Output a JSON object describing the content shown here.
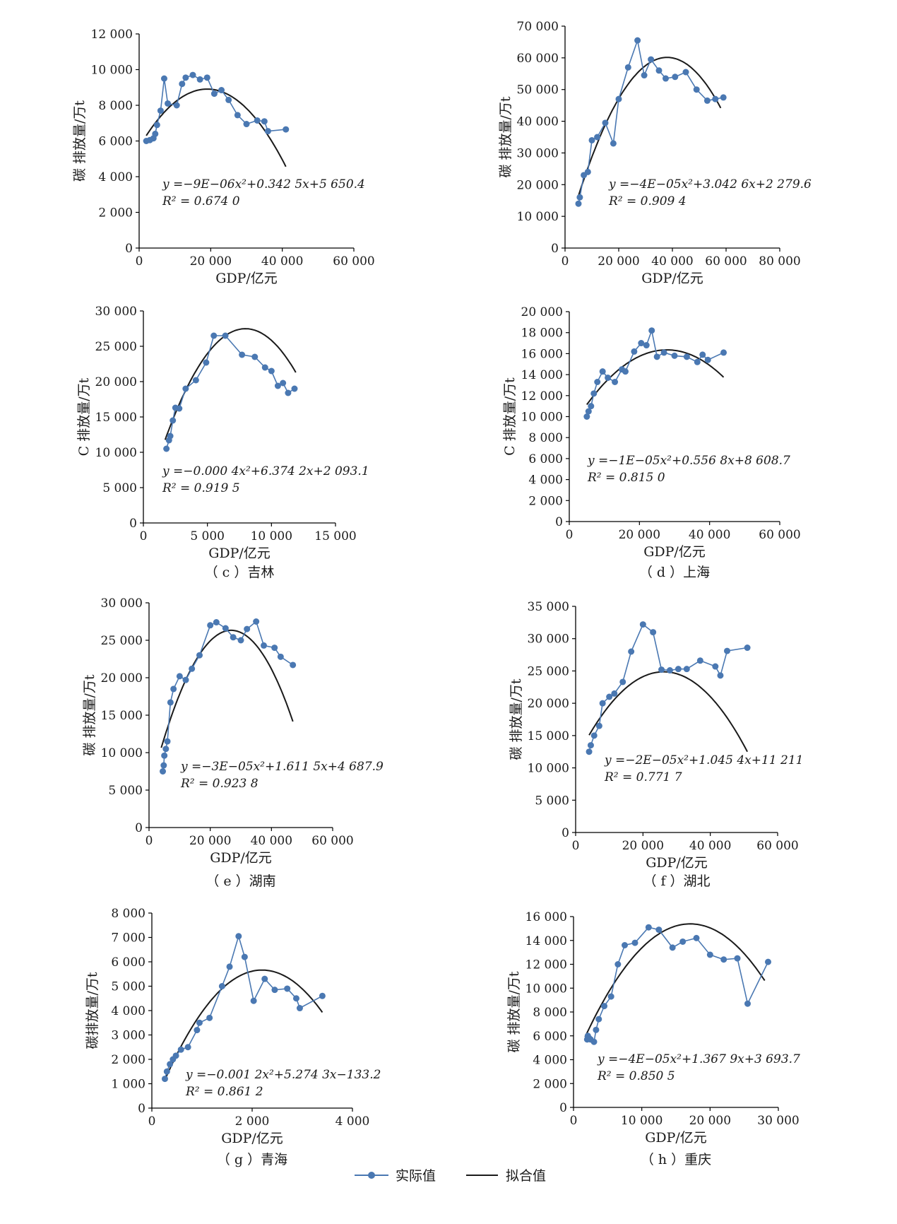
{
  "colors": {
    "actual": "#4a78b2",
    "fit": "#1a1a1a",
    "axis": "#000000"
  },
  "legend": {
    "actual_label": "实际值",
    "fit_label": "拟合值"
  },
  "chart_data": [
    {
      "id": "a",
      "type": "line",
      "caption": "",
      "xlabel": "GDP/亿元",
      "ylabel": "碳 排放量/万t",
      "xlim": [
        0,
        60000
      ],
      "ylim": [
        0,
        12000
      ],
      "xticks": [
        0,
        20000,
        40000,
        60000
      ],
      "xtick_labels": [
        "0",
        "20 000",
        "40 000",
        "60 000"
      ],
      "yticks": [
        0,
        2000,
        4000,
        6000,
        8000,
        10000,
        12000
      ],
      "ytick_labels": [
        "0",
        "2 000",
        "4 000",
        "6 000",
        "8 000",
        "10 000",
        "12 000"
      ],
      "equation": "y =−9E−06x²+0.342 5x+5 650.4",
      "r2": "R² = 0.674 0",
      "fit": {
        "a": -9e-06,
        "b": 0.3425,
        "c": 5650.4,
        "x0": 2000,
        "x1": 41000
      },
      "series": [
        {
          "name": "实际值",
          "x": [
            2000,
            3000,
            4000,
            4500,
            5000,
            6000,
            7000,
            8000,
            10500,
            12000,
            13000,
            15000,
            17000,
            19000,
            21000,
            23000,
            25000,
            27500,
            30000,
            33000,
            35000,
            36000,
            41000
          ],
          "y": [
            6000,
            6050,
            6150,
            6400,
            6900,
            7700,
            9500,
            8100,
            8000,
            9200,
            9550,
            9700,
            9450,
            9550,
            8650,
            8850,
            8300,
            7450,
            6950,
            7150,
            7100,
            6550,
            6650
          ]
        }
      ]
    },
    {
      "id": "b",
      "type": "line",
      "caption": "",
      "xlabel": "GDP/亿元",
      "ylabel": "碳 排放量/万t",
      "xlim": [
        0,
        80000
      ],
      "ylim": [
        0,
        70000
      ],
      "xticks": [
        0,
        20000,
        40000,
        60000,
        80000
      ],
      "xtick_labels": [
        "0",
        "20 000",
        "40 000",
        "60 000",
        "80 000"
      ],
      "yticks": [
        0,
        10000,
        20000,
        30000,
        40000,
        50000,
        60000,
        70000
      ],
      "ytick_labels": [
        "0",
        "10 000",
        "20 000",
        "30 000",
        "40 000",
        "50 000",
        "60 000",
        "70 000"
      ],
      "equation": "y =−4E−05x²+3.042 6x+2 279.6",
      "r2": "R² = 0.909 4",
      "fit": {
        "a": -4e-05,
        "b": 3.0426,
        "c": 2279.6,
        "x0": 5000,
        "x1": 58000
      },
      "series": [
        {
          "name": "实际值",
          "x": [
            5000,
            5500,
            7000,
            8500,
            10000,
            12000,
            15000,
            18000,
            20000,
            23500,
            27000,
            29500,
            32000,
            35000,
            37500,
            41000,
            45000,
            49000,
            53000,
            56000,
            59000
          ],
          "y": [
            14000,
            16000,
            23000,
            24000,
            34000,
            35000,
            39500,
            33000,
            47000,
            57000,
            65500,
            54500,
            59500,
            56000,
            53500,
            54000,
            55500,
            50000,
            46500,
            47000,
            47500
          ]
        }
      ]
    },
    {
      "id": "c",
      "type": "line",
      "caption": "（ c ）吉林",
      "xlabel": "GDP/亿元",
      "ylabel": "C 排放量/万t",
      "xlim": [
        0,
        15000
      ],
      "ylim": [
        0,
        30000
      ],
      "xticks": [
        0,
        5000,
        10000,
        15000
      ],
      "xtick_labels": [
        "0",
        "5 000",
        "10 000",
        "15 000"
      ],
      "yticks": [
        0,
        5000,
        10000,
        15000,
        20000,
        25000,
        30000
      ],
      "ytick_labels": [
        "0",
        "5 000",
        "10 000",
        "15 000",
        "20 000",
        "25 000",
        "30 000"
      ],
      "equation": "y =−0.000 4x²+6.374 2x+2 093.1",
      "r2": "R² = 0.919 5",
      "fit": {
        "a": -0.0004,
        "b": 6.3742,
        "c": 2093.1,
        "x0": 1700,
        "x1": 11900
      },
      "series": [
        {
          "name": "实际值",
          "x": [
            1800,
            2000,
            2100,
            2300,
            2500,
            2800,
            3300,
            4100,
            4900,
            5500,
            6400,
            7700,
            8700,
            9500,
            10000,
            10500,
            10900,
            11300,
            11800
          ],
          "y": [
            10500,
            11700,
            12300,
            14500,
            16300,
            16200,
            19000,
            20200,
            22700,
            26500,
            26500,
            23800,
            23500,
            22000,
            21500,
            19400,
            19800,
            18400,
            19000
          ]
        }
      ]
    },
    {
      "id": "d",
      "type": "line",
      "caption": "（ d ）上海",
      "xlabel": "GDP/亿元",
      "ylabel": "C 排放量/万t",
      "xlim": [
        0,
        60000
      ],
      "ylim": [
        0,
        20000
      ],
      "xticks": [
        0,
        20000,
        40000,
        60000
      ],
      "xtick_labels": [
        "0",
        "20 000",
        "40 000",
        "60 000"
      ],
      "yticks": [
        0,
        2000,
        4000,
        6000,
        8000,
        10000,
        12000,
        14000,
        16000,
        18000,
        20000
      ],
      "ytick_labels": [
        "0",
        "2 000",
        "4 000",
        "6 000",
        "8 000",
        "10 000",
        "12 000",
        "14 000",
        "16 000",
        "18 000",
        "20 000"
      ],
      "equation": "y =−1E−05x²+0.556 8x+8 608.7",
      "r2": "R² = 0.815 0",
      "fit": {
        "a": -1e-05,
        "b": 0.5568,
        "c": 8608.7,
        "x0": 5000,
        "x1": 44000
      },
      "series": [
        {
          "name": "实际值",
          "x": [
            5000,
            5500,
            6200,
            7000,
            8000,
            9500,
            11000,
            13000,
            15000,
            16000,
            18500,
            20500,
            22000,
            23500,
            25000,
            27000,
            30000,
            33500,
            36500,
            38000,
            39500,
            44000
          ],
          "y": [
            10000,
            10500,
            11000,
            12200,
            13300,
            14300,
            13700,
            13300,
            14500,
            14300,
            16200,
            17000,
            16800,
            18200,
            15700,
            16100,
            15800,
            15700,
            15200,
            15900,
            15400,
            16100
          ]
        }
      ]
    },
    {
      "id": "e",
      "type": "line",
      "caption": "（ e ）湖南",
      "xlabel": "GDP/亿元",
      "ylabel": "碳 排放量/万t",
      "xlim": [
        0,
        60000
      ],
      "ylim": [
        0,
        30000
      ],
      "xticks": [
        0,
        20000,
        40000,
        60000
      ],
      "xtick_labels": [
        "0",
        "20 000",
        "40 000",
        "60 000"
      ],
      "yticks": [
        0,
        5000,
        10000,
        15000,
        20000,
        25000,
        30000
      ],
      "ytick_labels": [
        "0",
        "5 000",
        "10 000",
        "15 000",
        "20 000",
        "25 000",
        "30 000"
      ],
      "equation": "y =−3E−05x²+1.611 5x+4 687.9",
      "r2": "R² = 0.923 8",
      "fit": {
        "a": -3e-05,
        "b": 1.6115,
        "c": 4687.9,
        "x0": 4000,
        "x1": 47000
      },
      "series": [
        {
          "name": "实际值",
          "x": [
            4500,
            4800,
            5000,
            5500,
            6000,
            7000,
            8000,
            10000,
            12000,
            14000,
            16500,
            20000,
            22000,
            25000,
            27500,
            30000,
            32000,
            35000,
            37500,
            41000,
            43000,
            47000
          ],
          "y": [
            7500,
            8300,
            9600,
            10500,
            11500,
            16700,
            18500,
            20200,
            19700,
            21200,
            23000,
            27000,
            27400,
            26600,
            25400,
            25000,
            26500,
            27500,
            24300,
            24000,
            22800,
            21700
          ]
        }
      ]
    },
    {
      "id": "f",
      "type": "line",
      "caption": "（ f ）湖北",
      "xlabel": "GDP/亿元",
      "ylabel": "碳 排放量/万t",
      "xlim": [
        0,
        60000
      ],
      "ylim": [
        0,
        35000
      ],
      "xticks": [
        0,
        20000,
        40000,
        60000
      ],
      "xtick_labels": [
        "0",
        "20 000",
        "40 000",
        "60 000"
      ],
      "yticks": [
        0,
        5000,
        10000,
        15000,
        20000,
        25000,
        30000,
        35000
      ],
      "ytick_labels": [
        "0",
        "5 000",
        "10 000",
        "15 000",
        "20 000",
        "25 000",
        "30 000",
        "35 000"
      ],
      "equation": "y =−2E−05x²+1.045 4x+11 211",
      "r2": "R² = 0.771 7",
      "fit": {
        "a": -2e-05,
        "b": 1.0454,
        "c": 11211,
        "x0": 4000,
        "x1": 51000
      },
      "series": [
        {
          "name": "实际值",
          "x": [
            4000,
            4500,
            5500,
            7000,
            8000,
            10000,
            11500,
            14000,
            16500,
            20000,
            23000,
            25500,
            28000,
            30500,
            33000,
            37000,
            41500,
            43000,
            45000,
            51000
          ],
          "y": [
            12500,
            13500,
            15000,
            16500,
            20000,
            21000,
            21500,
            23300,
            28000,
            32200,
            31000,
            25200,
            25100,
            25300,
            25300,
            26600,
            25700,
            24300,
            28100,
            28600
          ]
        }
      ]
    },
    {
      "id": "g",
      "type": "line",
      "caption": "（ g ）青海",
      "xlabel": "GDP/亿元",
      "ylabel": "碳排放量/万t",
      "xlim": [
        0,
        4000
      ],
      "ylim": [
        0,
        8000
      ],
      "xticks": [
        0,
        2000,
        4000
      ],
      "xtick_labels": [
        "0",
        "2 000",
        "4 000"
      ],
      "yticks": [
        0,
        1000,
        2000,
        3000,
        4000,
        5000,
        6000,
        7000,
        8000
      ],
      "ytick_labels": [
        "0",
        "1 000",
        "2 000",
        "3 000",
        "4 000",
        "5 000",
        "6 000",
        "7 000",
        "8 000"
      ],
      "equation": "y =−0.001 2x²+5.274 3x−133.2",
      "r2": "R² = 0.861 2",
      "fit": {
        "a": -0.0012,
        "b": 5.2743,
        "c": -133.2,
        "x0": 250,
        "x1": 3400
      },
      "series": [
        {
          "name": "实际值",
          "x": [
            260,
            300,
            360,
            420,
            480,
            580,
            720,
            900,
            950,
            1150,
            1400,
            1550,
            1730,
            1850,
            2030,
            2250,
            2450,
            2700,
            2880,
            2950,
            3400
          ],
          "y": [
            1200,
            1500,
            1800,
            2000,
            2150,
            2400,
            2500,
            3200,
            3500,
            3700,
            5000,
            5800,
            7050,
            6200,
            4400,
            5300,
            4850,
            4900,
            4500,
            4100,
            4600
          ]
        }
      ]
    },
    {
      "id": "h",
      "type": "line",
      "caption": "（ h ）重庆",
      "xlabel": "GDP/亿元",
      "ylabel": "碳 排放量/万t",
      "xlim": [
        0,
        30000
      ],
      "ylim": [
        0,
        16000
      ],
      "xticks": [
        0,
        10000,
        20000,
        30000
      ],
      "xtick_labels": [
        "0",
        "10 000",
        "20 000",
        "30 000"
      ],
      "yticks": [
        0,
        2000,
        4000,
        6000,
        8000,
        10000,
        12000,
        14000,
        16000
      ],
      "ytick_labels": [
        "0",
        "2 000",
        "4 000",
        "6 000",
        "8 000",
        "10 000",
        "12 000",
        "14 000",
        "16 000"
      ],
      "equation": "y =−4E−05x²+1.367 9x+3 693.7",
      "r2": "R² = 0.850 5",
      "fit": {
        "a": -4e-05,
        "b": 1.3679,
        "c": 3693.7,
        "x0": 1700,
        "x1": 28000
      },
      "series": [
        {
          "name": "实际值",
          "x": [
            2000,
            2100,
            2300,
            2500,
            3000,
            3300,
            3700,
            4500,
            5500,
            6500,
            7500,
            9000,
            11000,
            12500,
            14500,
            16000,
            18000,
            20000,
            22000,
            24000,
            25500,
            28500
          ],
          "y": [
            5700,
            6000,
            5800,
            5700,
            5500,
            6500,
            7400,
            8500,
            9300,
            12000,
            13600,
            13800,
            15100,
            14900,
            13400,
            13900,
            14200,
            12800,
            12400,
            12500,
            8700,
            12200
          ]
        }
      ]
    }
  ]
}
